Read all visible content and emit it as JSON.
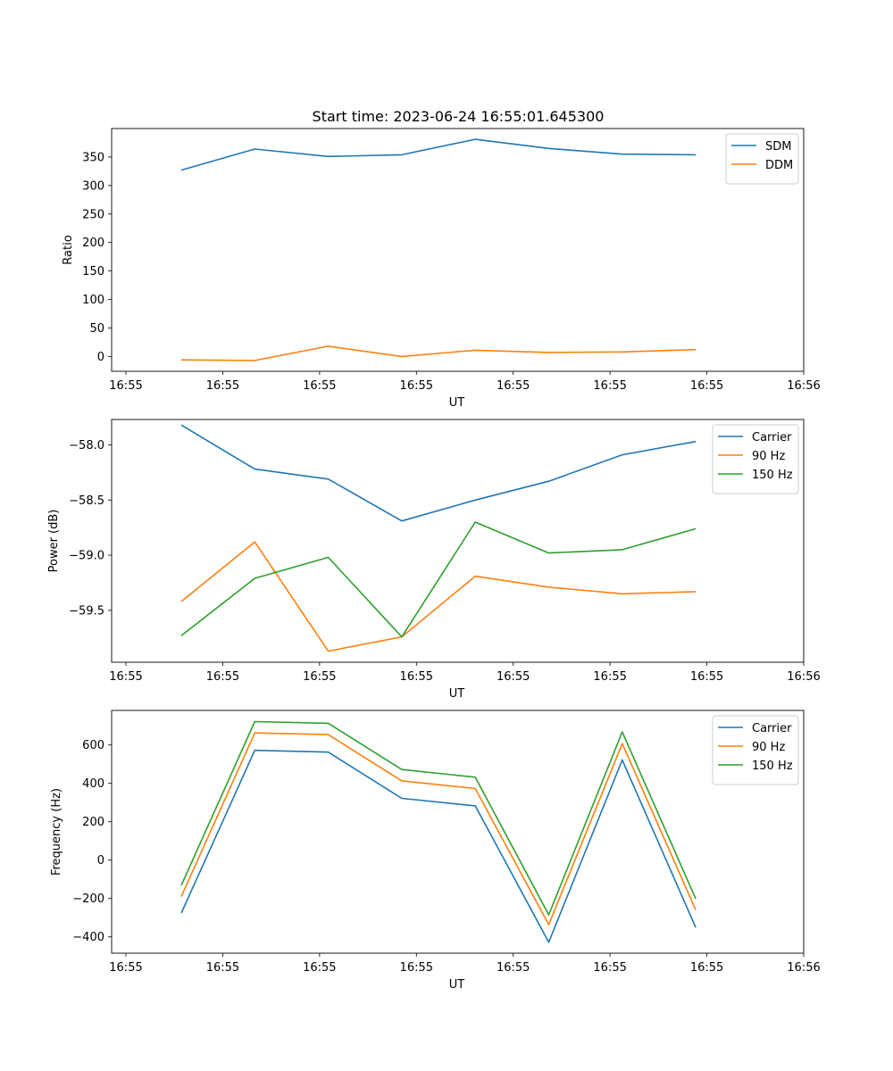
{
  "figure": {
    "title": "Start time: 2023-06-24 16:55:01.645300"
  },
  "chart_data": [
    {
      "type": "line",
      "title": "Start time: 2023-06-24 16:55:01.645300",
      "xlabel": "UT",
      "ylabel": "Ratio",
      "x_tick_labels": [
        "16:55",
        "16:55",
        "16:55",
        "16:55",
        "16:55",
        "16:55",
        "16:55",
        "16:56"
      ],
      "y_ticks": [
        0,
        50,
        100,
        150,
        200,
        250,
        300,
        350
      ],
      "y_tick_labels": [
        "0",
        "50",
        "100",
        "150",
        "200",
        "250",
        "300",
        "350"
      ],
      "ylim": [
        -26,
        400
      ],
      "x": [
        0.5,
        1.15,
        1.8,
        2.45,
        3.1,
        3.75,
        4.4,
        5.05
      ],
      "xlim": [
        -0.12,
        6.0
      ],
      "series": [
        {
          "name": "SDM",
          "color": "#1f77b4",
          "values": [
            327,
            364,
            351,
            354,
            381,
            365,
            355,
            354
          ]
        },
        {
          "name": "DDM",
          "color": "#ff7f0e",
          "values": [
            -6,
            -7,
            18,
            0,
            11,
            7,
            8,
            12
          ]
        }
      ],
      "legend": "top-right",
      "grid": false
    },
    {
      "type": "line",
      "xlabel": "UT",
      "ylabel": "Power (dB)",
      "x_tick_labels": [
        "16:55",
        "16:55",
        "16:55",
        "16:55",
        "16:55",
        "16:55",
        "16:55",
        "16:56"
      ],
      "y_ticks": [
        -58.0,
        -58.5,
        -59.0,
        -59.5
      ],
      "y_tick_labels": [
        "−58.0",
        "−58.5",
        "−59.0",
        "−59.5"
      ],
      "ylim": [
        -59.97,
        -57.77
      ],
      "x": [
        0.5,
        1.15,
        1.8,
        2.45,
        3.1,
        3.75,
        4.4,
        5.05
      ],
      "xlim": [
        -0.12,
        6.0
      ],
      "series": [
        {
          "name": "Carrier",
          "color": "#1f77b4",
          "values": [
            -57.82,
            -58.22,
            -58.31,
            -58.69,
            -58.5,
            -58.33,
            -58.09,
            -57.97
          ]
        },
        {
          "name": "90 Hz",
          "color": "#ff7f0e",
          "values": [
            -59.42,
            -58.88,
            -59.87,
            -59.74,
            -59.19,
            -59.29,
            -59.35,
            -59.33
          ]
        },
        {
          "name": "150 Hz",
          "color": "#2ca02c",
          "values": [
            -59.73,
            -59.21,
            -59.02,
            -59.74,
            -58.7,
            -58.98,
            -58.95,
            -58.76
          ]
        }
      ],
      "legend": "top-right",
      "grid": false
    },
    {
      "type": "line",
      "xlabel": "UT",
      "ylabel": "Frequency (Hz)",
      "x_tick_labels": [
        "16:55",
        "16:55",
        "16:55",
        "16:55",
        "16:55",
        "16:55",
        "16:55",
        "16:56"
      ],
      "y_ticks": [
        -400,
        -200,
        0,
        200,
        400,
        600
      ],
      "y_tick_labels": [
        "−400",
        "−200",
        "0",
        "200",
        "400",
        "600"
      ],
      "ylim": [
        -485,
        780
      ],
      "x": [
        0.5,
        1.15,
        1.8,
        2.45,
        3.1,
        3.75,
        4.4,
        5.05
      ],
      "xlim": [
        -0.12,
        6.0
      ],
      "series": [
        {
          "name": "Carrier",
          "color": "#1f77b4",
          "values": [
            -276,
            572,
            563,
            322,
            283,
            -428,
            522,
            -351
          ]
        },
        {
          "name": "90 Hz",
          "color": "#ff7f0e",
          "values": [
            -190,
            663,
            654,
            413,
            373,
            -336,
            607,
            -260
          ]
        },
        {
          "name": "150 Hz",
          "color": "#2ca02c",
          "values": [
            -132,
            722,
            713,
            472,
            432,
            -285,
            668,
            -202
          ]
        }
      ],
      "legend": "top-right",
      "grid": false
    }
  ]
}
